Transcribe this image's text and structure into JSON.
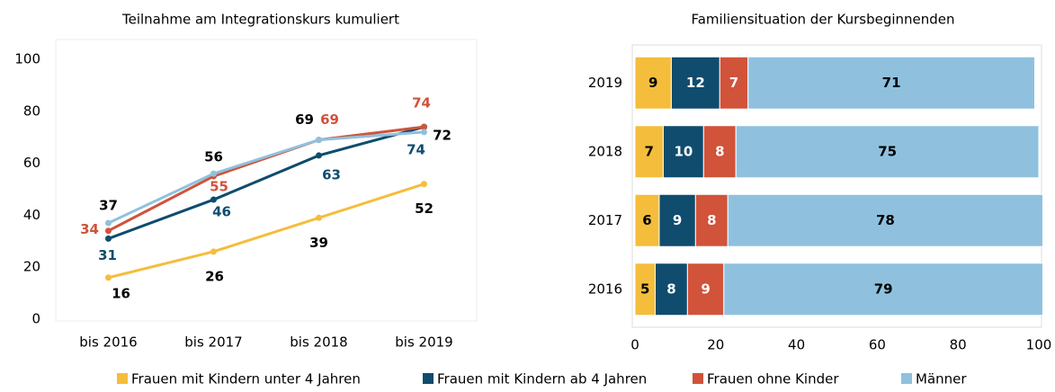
{
  "chart_data": [
    {
      "type": "line",
      "title": "Teilnahme am Integrationskurs kumuliert",
      "categories": [
        "bis 2016",
        "bis 2017",
        "bis 2018",
        "bis 2019"
      ],
      "series": [
        {
          "name": "Frauen mit Kindern unter 4 Jahren",
          "color": "#f5bd3c",
          "label_color": "#000000",
          "values": [
            16,
            26,
            39,
            52
          ]
        },
        {
          "name": "Frauen mit Kindern ab 4 Jahren",
          "color": "#0f4c6e",
          "label_color": "#0f4c6e",
          "values": [
            31,
            46,
            63,
            74
          ]
        },
        {
          "name": "Frauen ohne Kinder",
          "color": "#d0533a",
          "label_color": "#d0533a",
          "values": [
            34,
            55,
            69,
            74
          ]
        },
        {
          "name": "Männer",
          "color": "#8fc1de",
          "label_color": "#000000",
          "values": [
            37,
            56,
            69,
            72
          ]
        }
      ],
      "ylim": [
        0,
        100
      ],
      "yticks": [
        0,
        20,
        40,
        60,
        80,
        100
      ]
    },
    {
      "type": "stacked-bar-horizontal",
      "title": "Familiensituation der Kursbeginnenden",
      "categories": [
        "2019",
        "2018",
        "2017",
        "2016"
      ],
      "series": [
        {
          "color": "#f5bd3c",
          "label_color": "#000000",
          "values": [
            9,
            7,
            6,
            5
          ]
        },
        {
          "color": "#0f4c6e",
          "label_color": "#ffffff",
          "values": [
            12,
            10,
            9,
            8
          ]
        },
        {
          "color": "#d0533a",
          "label_color": "#ffffff",
          "values": [
            7,
            8,
            8,
            9
          ]
        },
        {
          "color": "#8fc1de",
          "label_color": "#000000",
          "values": [
            71,
            75,
            78,
            79
          ]
        }
      ],
      "xlim": [
        0,
        100
      ],
      "xticks": [
        0,
        20,
        40,
        60,
        80,
        100
      ]
    }
  ]
}
